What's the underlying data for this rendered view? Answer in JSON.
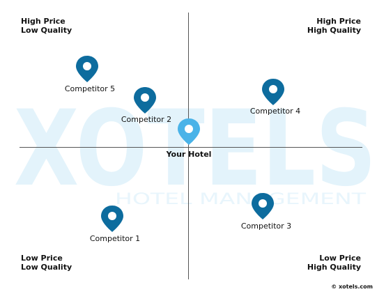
{
  "watermark": {
    "text": "XOTELS",
    "subtext": "HOTEL MANAGEMENT"
  },
  "quadrants": {
    "top_left": [
      "High Price",
      "Low Quality"
    ],
    "top_right": [
      "High Price",
      "High Quality"
    ],
    "bottom_left": [
      "Low Price",
      "Low Quality"
    ],
    "bottom_right": [
      "Low Price",
      "High Quality"
    ]
  },
  "markers": [
    {
      "label": "Competitor 5",
      "color": "#0d6c9e",
      "role": "competitor"
    },
    {
      "label": "Competitor 2",
      "color": "#0d6c9e",
      "role": "competitor"
    },
    {
      "label": "Competitor 4",
      "color": "#0d6c9e",
      "role": "competitor"
    },
    {
      "label": "Your Hotel",
      "color": "#4ab3e8",
      "role": "you"
    },
    {
      "label": "Competitor 1",
      "color": "#0d6c9e",
      "role": "competitor"
    },
    {
      "label": "Competitor 3",
      "color": "#0d6c9e",
      "role": "competitor"
    }
  ],
  "credit": "© xotels.com",
  "colors": {
    "axis": "#555555",
    "watermark": "#e3f3fb",
    "pin_dark": "#0d6c9e",
    "pin_light": "#4ab3e8"
  }
}
